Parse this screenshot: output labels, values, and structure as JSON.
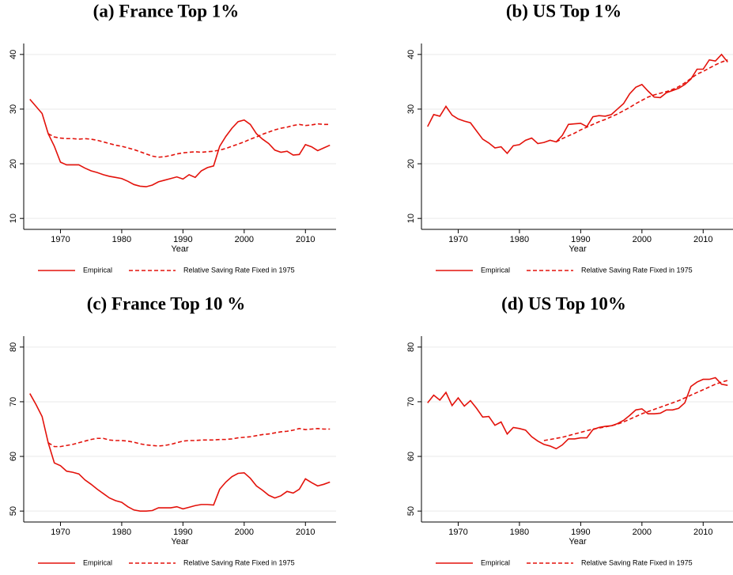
{
  "chart_data": [
    {
      "type": "line",
      "title": "(a) France Top 1%",
      "xlabel": "Year",
      "grid": true,
      "legend": "bottom",
      "x": [
        1965,
        1966,
        1967,
        1968,
        1969,
        1970,
        1971,
        1972,
        1973,
        1974,
        1975,
        1976,
        1977,
        1978,
        1979,
        1980,
        1981,
        1982,
        1983,
        1984,
        1985,
        1986,
        1987,
        1988,
        1989,
        1990,
        1991,
        1992,
        1993,
        1994,
        1995,
        1996,
        1997,
        1998,
        1999,
        2000,
        2001,
        2002,
        2003,
        2004,
        2005,
        2006,
        2007,
        2008,
        2009,
        2010,
        2011,
        2012,
        2013,
        2014
      ],
      "xlim": [
        1964,
        2015
      ],
      "xticks": [
        1970,
        1980,
        1990,
        2000,
        2010
      ],
      "ylim": [
        8,
        42
      ],
      "yticks": [
        10,
        20,
        30,
        40
      ],
      "series": [
        {
          "name": "Empirical",
          "color": "#e3120b",
          "line_style": "solid",
          "values": [
            31.8,
            30.5,
            29.2,
            25.5,
            23.2,
            20.3,
            19.8,
            19.8,
            19.8,
            19.2,
            18.7,
            18.4,
            18.0,
            17.7,
            17.5,
            17.3,
            16.8,
            16.2,
            15.9,
            15.8,
            16.1,
            16.7,
            17.0,
            17.3,
            17.6,
            17.2,
            18.0,
            17.5,
            18.7,
            19.3,
            19.6,
            23.2,
            25.0,
            26.5,
            27.7,
            28.0,
            27.2,
            25.5,
            24.5,
            23.7,
            22.5,
            22.1,
            22.3,
            21.6,
            21.7,
            23.5,
            23.1,
            22.4,
            22.9,
            23.4
          ]
        },
        {
          "name": "Relative Saving Rate Fixed in 1975",
          "color": "#e3120b",
          "line_style": "dashed",
          "values": [
            null,
            null,
            null,
            25.5,
            24.9,
            24.7,
            24.6,
            24.6,
            24.5,
            24.6,
            24.5,
            24.3,
            24.0,
            23.7,
            23.4,
            23.2,
            22.9,
            22.6,
            22.2,
            21.8,
            21.4,
            21.2,
            21.3,
            21.5,
            21.8,
            22.0,
            22.1,
            22.2,
            22.1,
            22.2,
            22.3,
            22.5,
            22.8,
            23.2,
            23.6,
            24.0,
            24.5,
            24.9,
            25.4,
            25.8,
            26.2,
            26.5,
            26.7,
            27.0,
            27.2,
            27.0,
            27.1,
            27.3,
            27.2,
            27.2
          ]
        }
      ]
    },
    {
      "type": "line",
      "title": "(b) US Top 1%",
      "xlabel": "Year",
      "grid": true,
      "legend": "bottom",
      "x": [
        1965,
        1966,
        1967,
        1968,
        1969,
        1970,
        1971,
        1972,
        1973,
        1974,
        1975,
        1976,
        1977,
        1978,
        1979,
        1980,
        1981,
        1982,
        1983,
        1984,
        1985,
        1986,
        1987,
        1988,
        1989,
        1990,
        1991,
        1992,
        1993,
        1994,
        1995,
        1996,
        1997,
        1998,
        1999,
        2000,
        2001,
        2002,
        2003,
        2004,
        2005,
        2006,
        2007,
        2008,
        2009,
        2010,
        2011,
        2012,
        2013,
        2014
      ],
      "xlim": [
        1964,
        2015
      ],
      "xticks": [
        1970,
        1980,
        1990,
        2000,
        2010
      ],
      "ylim": [
        8,
        42
      ],
      "yticks": [
        10,
        20,
        30,
        40
      ],
      "series": [
        {
          "name": "Empirical",
          "color": "#e3120b",
          "line_style": "solid",
          "values": [
            26.8,
            29.0,
            28.7,
            30.5,
            28.9,
            28.2,
            27.8,
            27.5,
            26.0,
            24.5,
            23.8,
            22.9,
            23.1,
            21.9,
            23.3,
            23.5,
            24.3,
            24.7,
            23.7,
            23.9,
            24.3,
            24.0,
            25.2,
            27.2,
            27.3,
            27.4,
            26.8,
            28.6,
            28.8,
            28.7,
            29.0,
            30.0,
            31.0,
            32.8,
            34.0,
            34.5,
            33.3,
            32.2,
            32.1,
            33.0,
            33.4,
            33.8,
            34.5,
            35.5,
            37.3,
            37.3,
            39.0,
            38.8,
            40.0,
            38.6
          ]
        },
        {
          "name": "Relative Saving Rate Fixed in 1975",
          "color": "#e3120b",
          "line_style": "dashed",
          "values": [
            null,
            null,
            null,
            null,
            null,
            null,
            null,
            null,
            null,
            null,
            null,
            null,
            null,
            null,
            null,
            null,
            null,
            null,
            null,
            null,
            null,
            24.0,
            24.6,
            25.1,
            25.6,
            26.2,
            26.7,
            27.2,
            27.7,
            28.1,
            28.6,
            29.1,
            29.7,
            30.3,
            31.0,
            31.6,
            32.2,
            32.6,
            32.9,
            33.2,
            33.6,
            34.1,
            34.8,
            35.6,
            36.4,
            36.9,
            37.5,
            38.1,
            38.6,
            39.0
          ]
        }
      ]
    },
    {
      "type": "line",
      "title": "(c) France Top 10 %",
      "xlabel": "Year",
      "grid": true,
      "legend": "bottom",
      "x": [
        1965,
        1966,
        1967,
        1968,
        1969,
        1970,
        1971,
        1972,
        1973,
        1974,
        1975,
        1976,
        1977,
        1978,
        1979,
        1980,
        1981,
        1982,
        1983,
        1984,
        1985,
        1986,
        1987,
        1988,
        1989,
        1990,
        1991,
        1992,
        1993,
        1994,
        1995,
        1996,
        1997,
        1998,
        1999,
        2000,
        2001,
        2002,
        2003,
        2004,
        2005,
        2006,
        2007,
        2008,
        2009,
        2010,
        2011,
        2012,
        2013,
        2014
      ],
      "xlim": [
        1964,
        2015
      ],
      "xticks": [
        1970,
        1980,
        1990,
        2000,
        2010
      ],
      "ylim": [
        48,
        82
      ],
      "yticks": [
        50,
        60,
        70,
        80
      ],
      "series": [
        {
          "name": "Empirical",
          "color": "#e3120b",
          "line_style": "solid",
          "values": [
            71.5,
            69.5,
            67.3,
            62.5,
            58.8,
            58.3,
            57.3,
            57.1,
            56.8,
            55.7,
            54.9,
            54.0,
            53.2,
            52.4,
            51.9,
            51.6,
            50.8,
            50.2,
            50.0,
            50.0,
            50.1,
            50.6,
            50.6,
            50.6,
            50.8,
            50.4,
            50.7,
            51.0,
            51.2,
            51.2,
            51.1,
            54.0,
            55.3,
            56.3,
            56.9,
            57.0,
            56.0,
            54.6,
            53.8,
            52.9,
            52.4,
            52.8,
            53.6,
            53.3,
            54.0,
            55.9,
            55.2,
            54.6,
            54.9,
            55.3
          ]
        },
        {
          "name": "Relative Saving Rate Fixed in 1975",
          "color": "#e3120b",
          "line_style": "dashed",
          "values": [
            null,
            null,
            null,
            62.5,
            61.8,
            61.8,
            62.0,
            62.2,
            62.5,
            62.8,
            63.1,
            63.3,
            63.3,
            63.0,
            62.9,
            62.9,
            62.8,
            62.6,
            62.3,
            62.1,
            62.0,
            61.9,
            62.0,
            62.2,
            62.5,
            62.8,
            62.9,
            62.9,
            63.0,
            63.0,
            63.0,
            63.1,
            63.1,
            63.2,
            63.4,
            63.5,
            63.6,
            63.8,
            64.0,
            64.1,
            64.3,
            64.5,
            64.6,
            64.8,
            65.1,
            64.9,
            65.0,
            65.1,
            65.0,
            65.0
          ]
        }
      ]
    },
    {
      "type": "line",
      "title": "(d) US Top 10%",
      "xlabel": "Year",
      "grid": true,
      "legend": "bottom",
      "x": [
        1965,
        1966,
        1967,
        1968,
        1969,
        1970,
        1971,
        1972,
        1973,
        1974,
        1975,
        1976,
        1977,
        1978,
        1979,
        1980,
        1981,
        1982,
        1983,
        1984,
        1985,
        1986,
        1987,
        1988,
        1989,
        1990,
        1991,
        1992,
        1993,
        1994,
        1995,
        1996,
        1997,
        1998,
        1999,
        2000,
        2001,
        2002,
        2003,
        2004,
        2005,
        2006,
        2007,
        2008,
        2009,
        2010,
        2011,
        2012,
        2013,
        2014
      ],
      "xlim": [
        1964,
        2015
      ],
      "xticks": [
        1970,
        1980,
        1990,
        2000,
        2010
      ],
      "ylim": [
        48,
        82
      ],
      "yticks": [
        50,
        60,
        70,
        80
      ],
      "series": [
        {
          "name": "Empirical",
          "color": "#e3120b",
          "line_style": "solid",
          "values": [
            69.8,
            71.2,
            70.3,
            71.7,
            69.3,
            70.7,
            69.2,
            70.2,
            68.8,
            67.2,
            67.3,
            65.7,
            66.3,
            64.1,
            65.3,
            65.1,
            64.8,
            63.6,
            62.8,
            62.2,
            61.9,
            61.4,
            62.1,
            63.2,
            63.2,
            63.4,
            63.4,
            64.9,
            65.3,
            65.5,
            65.6,
            66.0,
            66.6,
            67.5,
            68.5,
            68.7,
            67.8,
            67.8,
            67.9,
            68.5,
            68.5,
            68.8,
            69.8,
            72.8,
            73.6,
            74.1,
            74.1,
            74.4,
            73.2,
            73.0
          ]
        },
        {
          "name": "Relative Saving Rate Fixed in 1975",
          "color": "#e3120b",
          "line_style": "dashed",
          "values": [
            null,
            null,
            null,
            null,
            null,
            null,
            null,
            null,
            null,
            null,
            null,
            null,
            null,
            null,
            null,
            null,
            null,
            null,
            null,
            62.9,
            63.1,
            63.3,
            63.5,
            63.8,
            64.1,
            64.4,
            64.7,
            65.0,
            65.2,
            65.4,
            65.6,
            65.9,
            66.3,
            66.8,
            67.3,
            67.8,
            68.2,
            68.6,
            69.0,
            69.4,
            69.8,
            70.2,
            70.7,
            71.2,
            71.7,
            72.2,
            72.7,
            73.2,
            73.6,
            73.9
          ]
        }
      ]
    }
  ]
}
